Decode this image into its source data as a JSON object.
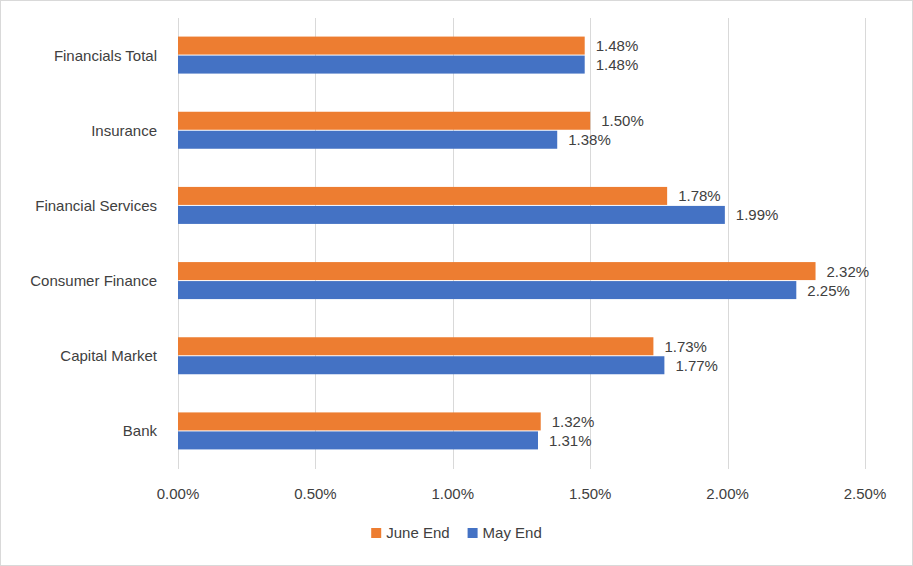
{
  "chart_data": {
    "type": "bar",
    "orientation": "horizontal",
    "categories": [
      "Financials Total",
      "Insurance",
      "Financial Services",
      "Consumer Finance",
      "Capital Market",
      "Bank"
    ],
    "series": [
      {
        "name": "June End",
        "color": "#ed7d31",
        "values": [
          1.48,
          1.5,
          1.78,
          2.32,
          1.73,
          1.32
        ],
        "value_labels": [
          "1.48%",
          "1.50%",
          "1.78%",
          "2.32%",
          "1.73%",
          "1.32%"
        ]
      },
      {
        "name": "May End",
        "color": "#4472c4",
        "values": [
          1.48,
          1.38,
          1.99,
          2.25,
          1.77,
          1.31
        ],
        "value_labels": [
          "1.48%",
          "1.38%",
          "1.99%",
          "2.25%",
          "1.77%",
          "1.31%"
        ]
      }
    ],
    "xlim": [
      0,
      2.5
    ],
    "xticks": [
      {
        "value": 0,
        "label": "0.00%"
      },
      {
        "value": 0.5,
        "label": "0.50%"
      },
      {
        "value": 1,
        "label": "1.00%"
      },
      {
        "value": 1.5,
        "label": "1.50%"
      },
      {
        "value": 2,
        "label": "2.00%"
      },
      {
        "value": 2.5,
        "label": "2.50%"
      }
    ],
    "grid": true,
    "legend": "bottom",
    "data_labels": true
  }
}
